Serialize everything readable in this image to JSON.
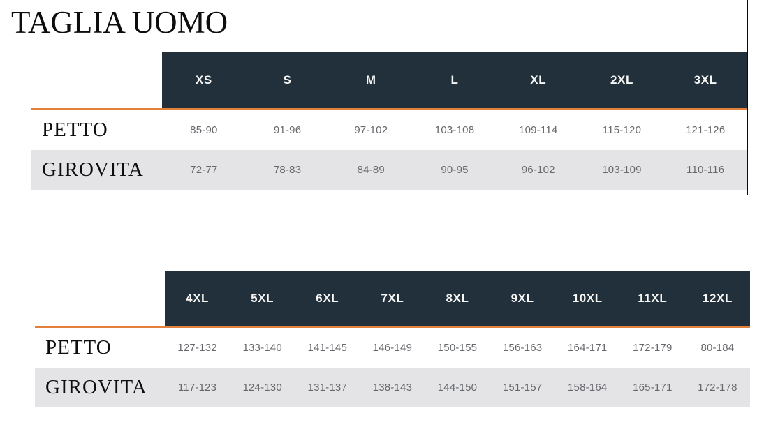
{
  "page_title": "TAGLIA UOMO",
  "colors": {
    "header_bg": "#22303c",
    "accent_orange": "#e2803c",
    "alt_row_bg": "#e4e4e6",
    "header_text": "#f6f6f4",
    "value_text": "#66686c",
    "label_text": "#0e0e0e"
  },
  "tables": [
    {
      "sizes": [
        "XS",
        "S",
        "M",
        "L",
        "XL",
        "2XL",
        "3XL"
      ],
      "rows": [
        {
          "label": "PETTO",
          "values": [
            "85-90",
            "91-96",
            "97-102",
            "103-108",
            "109-114",
            "115-120",
            "121-126"
          ]
        },
        {
          "label": "GIROVITA",
          "values": [
            "72-77",
            "78-83",
            "84-89",
            "90-95",
            "96-102",
            "103-109",
            "110-116"
          ]
        }
      ]
    },
    {
      "sizes": [
        "4XL",
        "5XL",
        "6XL",
        "7XL",
        "8XL",
        "9XL",
        "10XL",
        "11XL",
        "12XL"
      ],
      "rows": [
        {
          "label": "PETTO",
          "values": [
            "127-132",
            "133-140",
            "141-145",
            "146-149",
            "150-155",
            "156-163",
            "164-171",
            "172-179",
            "80-184"
          ]
        },
        {
          "label": "GIROVITA",
          "values": [
            "117-123",
            "124-130",
            "131-137",
            "138-143",
            "144-150",
            "151-157",
            "158-164",
            "165-171",
            "172-178"
          ]
        }
      ]
    }
  ]
}
